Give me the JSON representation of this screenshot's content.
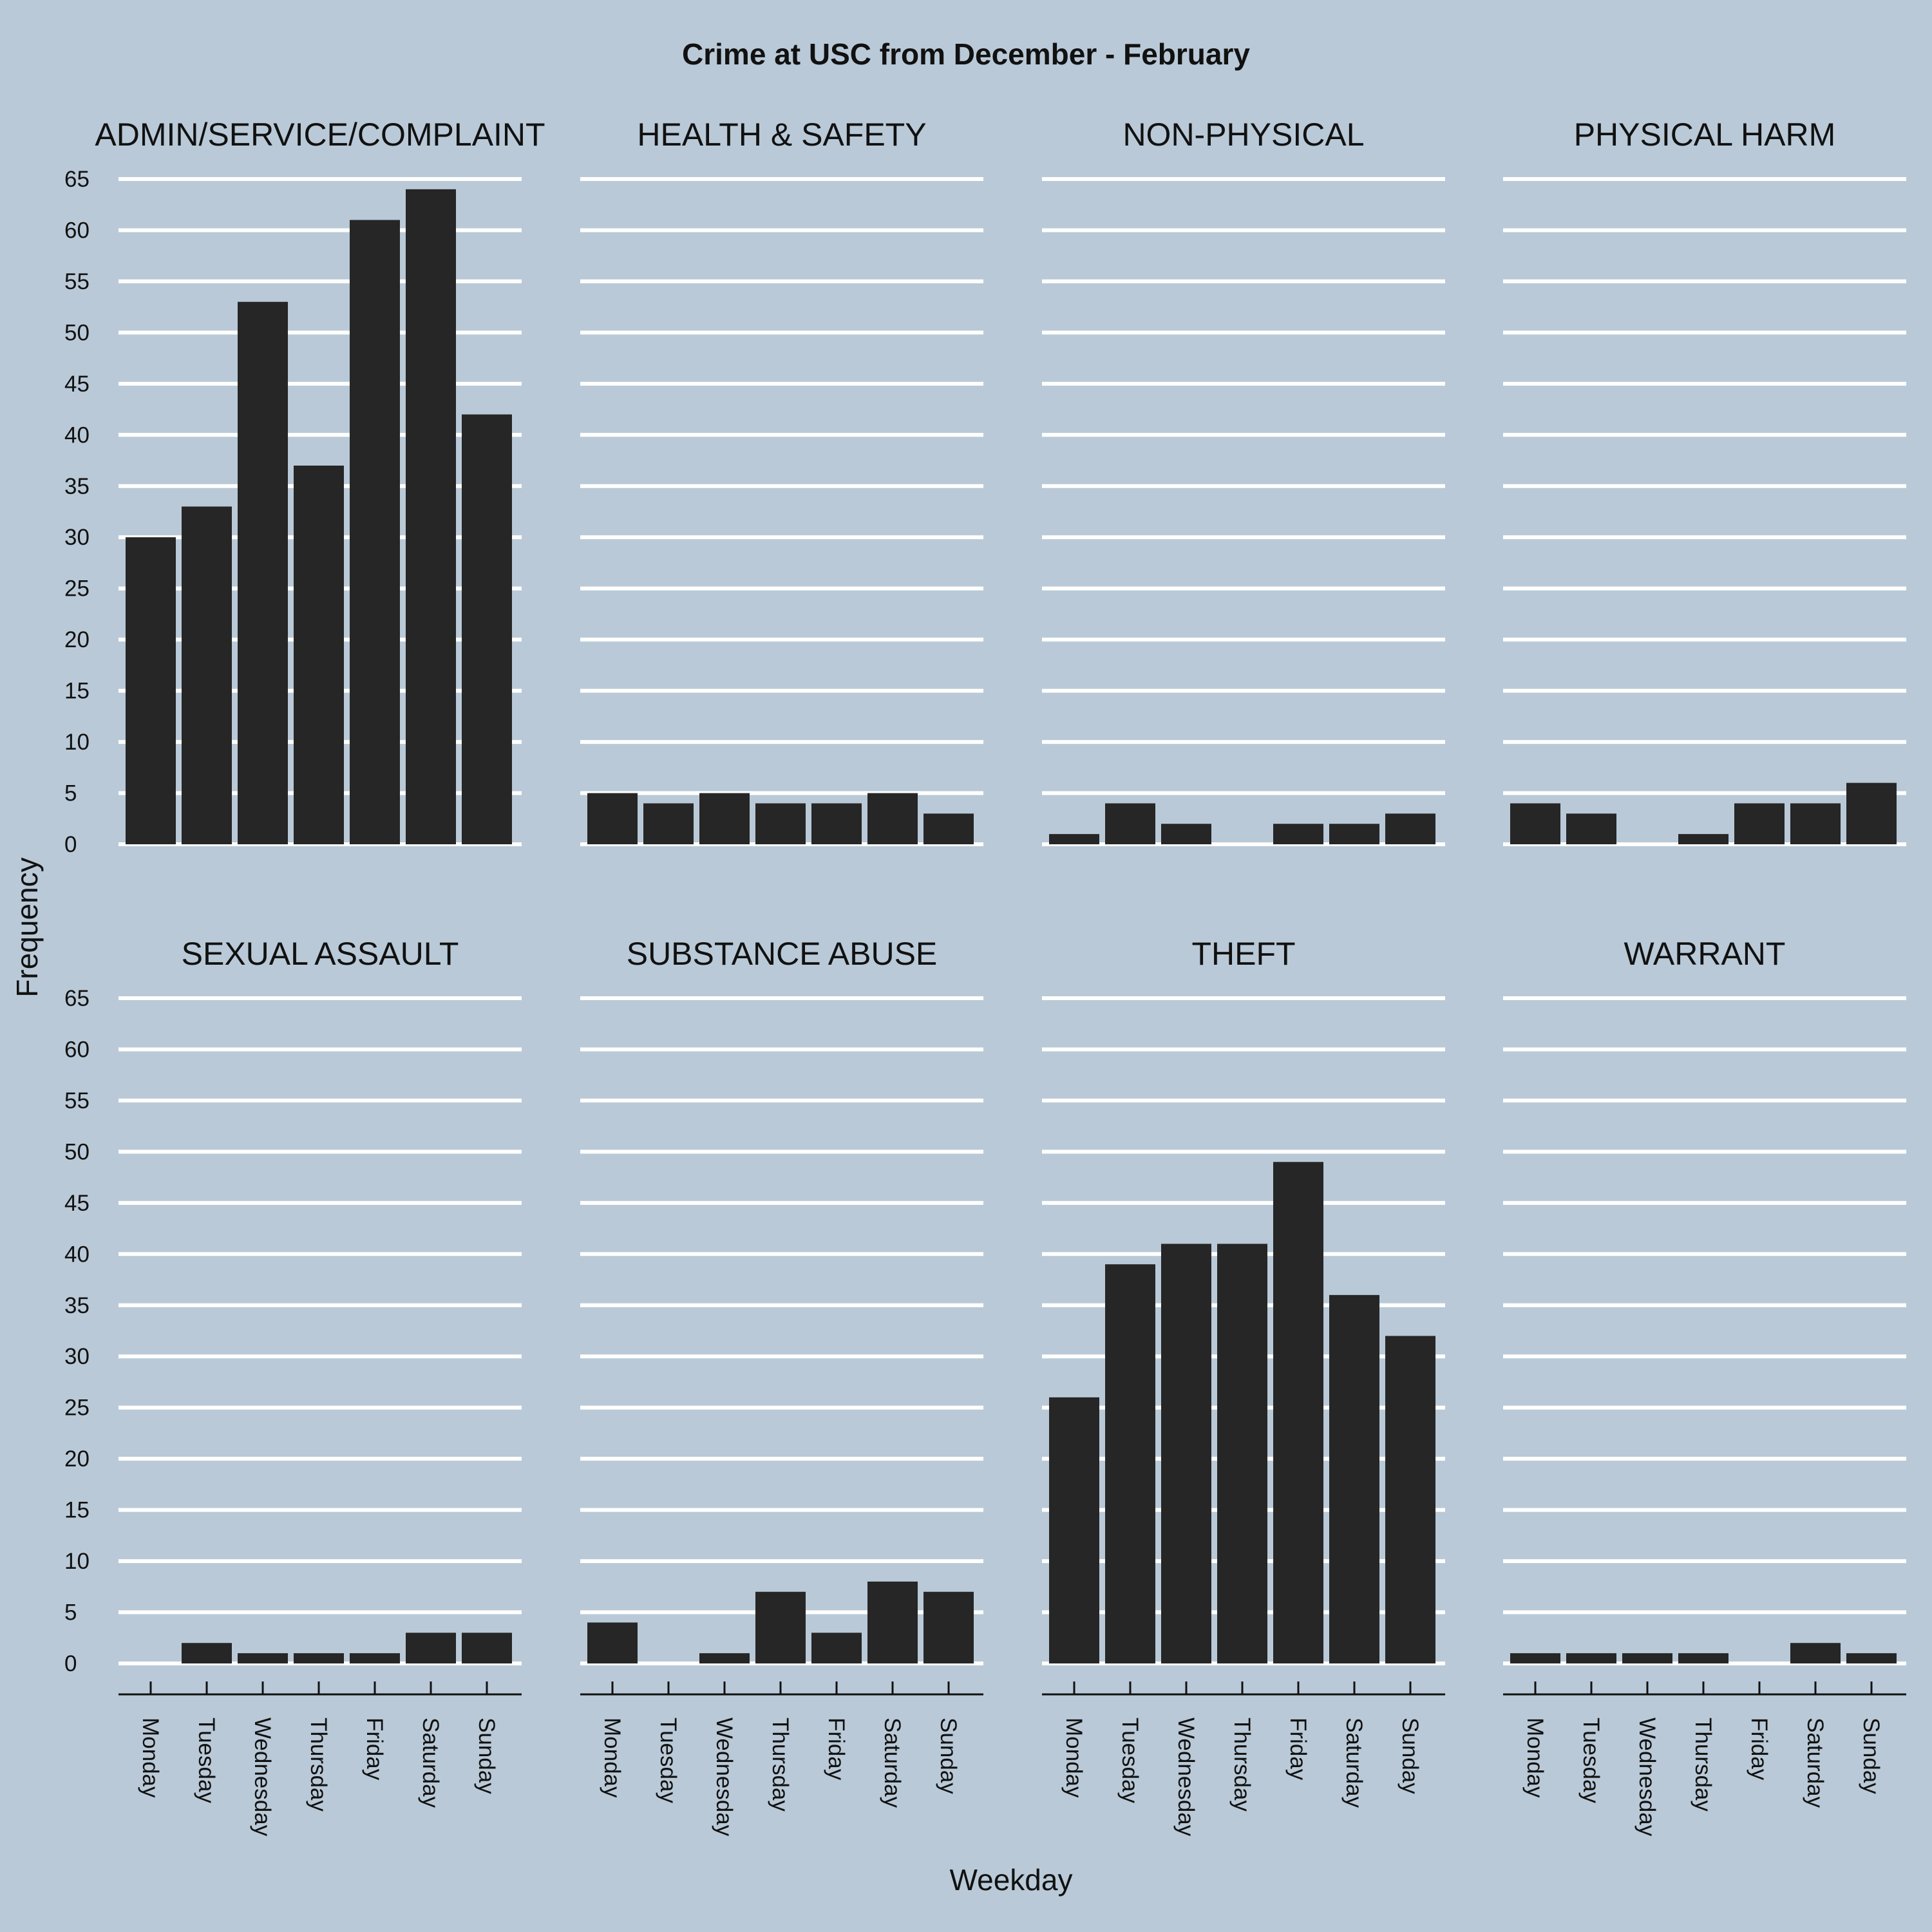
{
  "chart_data": {
    "type": "bar",
    "title": "Crime at USC from December - February",
    "xlabel": "Weekday",
    "ylabel": "Frequency",
    "ylim": [
      0,
      65
    ],
    "yticks": [
      0,
      5,
      10,
      15,
      20,
      25,
      30,
      35,
      40,
      45,
      50,
      55,
      60,
      65
    ],
    "categories": [
      "Monday",
      "Tuesday",
      "Wednesday",
      "Thursday",
      "Friday",
      "Saturday",
      "Sunday"
    ],
    "grid": "horizontal",
    "colors": {
      "background": "#b9c9d7",
      "bar": "#262626",
      "grid": "#ffffff",
      "text": "#111111"
    },
    "panels": [
      {
        "name": "ADMIN/SERVICE/COMPLAINT",
        "values": [
          30,
          33,
          53,
          37,
          61,
          64,
          42
        ]
      },
      {
        "name": "HEALTH & SAFETY",
        "values": [
          5,
          4,
          5,
          4,
          4,
          5,
          3
        ]
      },
      {
        "name": "NON-PHYSICAL",
        "values": [
          1,
          4,
          2,
          0,
          2,
          2,
          3
        ]
      },
      {
        "name": "PHYSICAL HARM",
        "values": [
          4,
          3,
          0,
          1,
          4,
          4,
          6
        ]
      },
      {
        "name": "SEXUAL ASSAULT",
        "values": [
          0,
          2,
          1,
          1,
          1,
          3,
          3
        ]
      },
      {
        "name": "SUBSTANCE ABUSE",
        "values": [
          4,
          0,
          1,
          7,
          3,
          8,
          7
        ]
      },
      {
        "name": "THEFT",
        "values": [
          26,
          39,
          41,
          41,
          49,
          36,
          32
        ]
      },
      {
        "name": "WARRANT",
        "values": [
          1,
          1,
          1,
          1,
          0,
          2,
          1
        ]
      }
    ]
  }
}
